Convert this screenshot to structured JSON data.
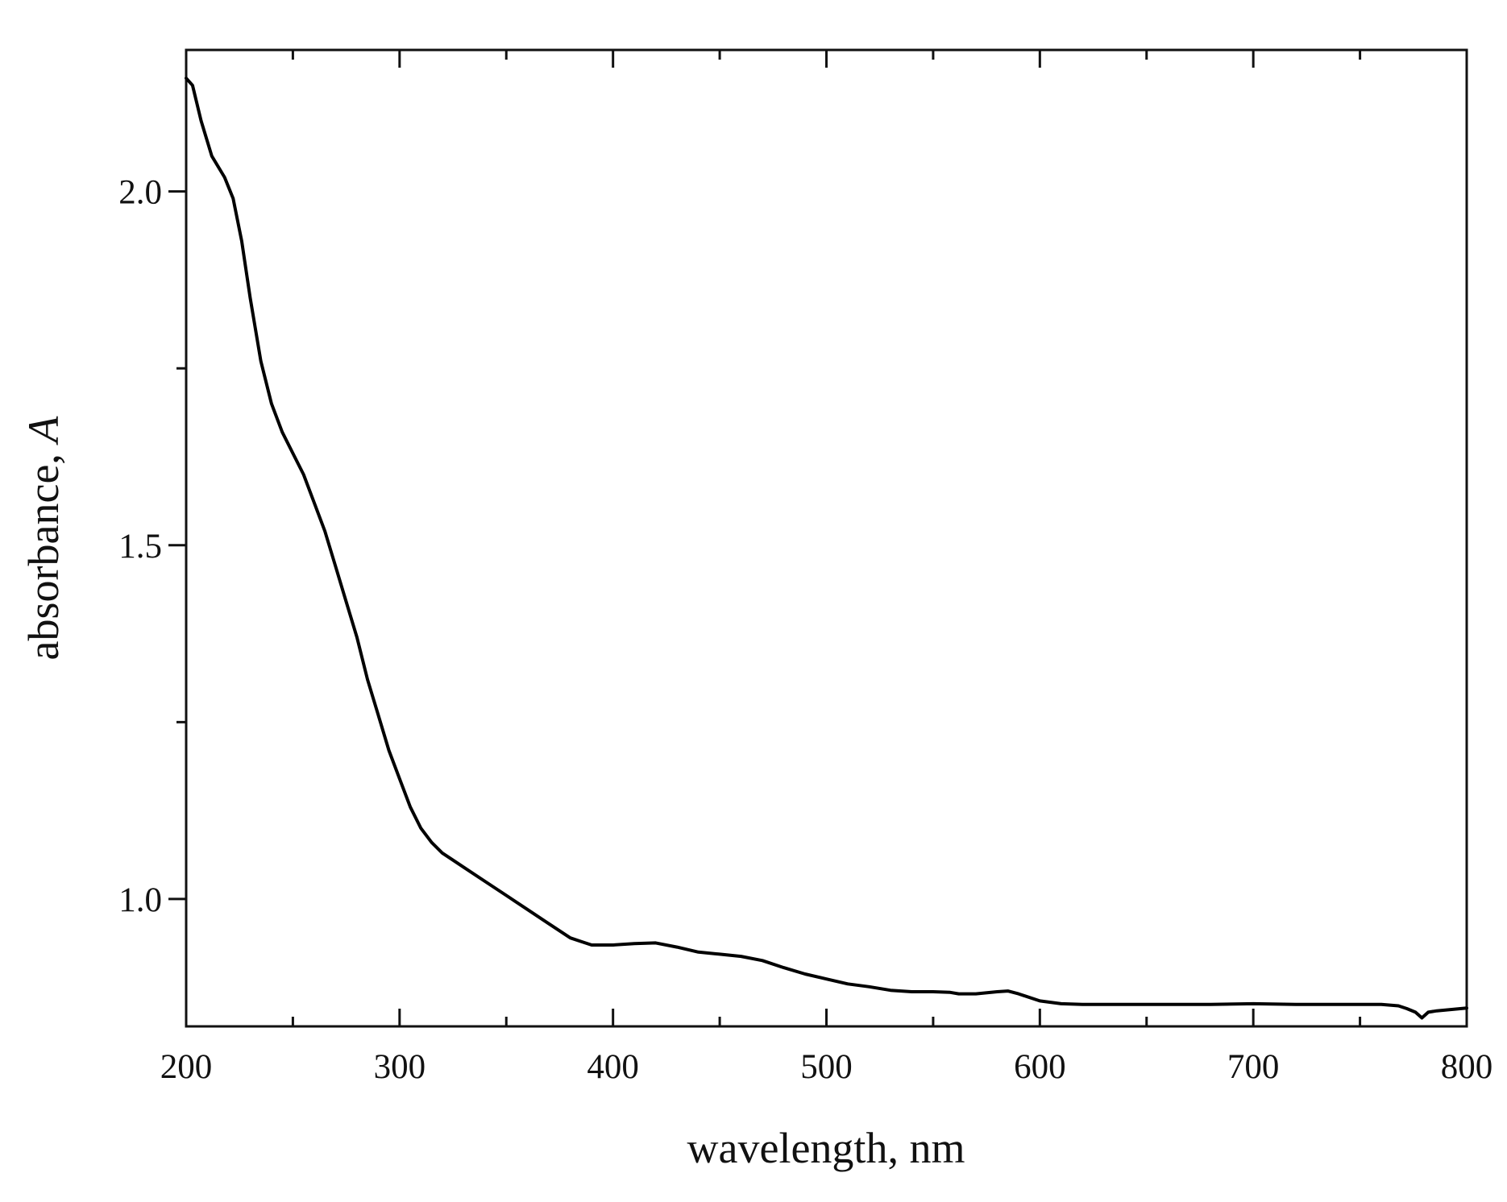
{
  "chart_data": {
    "type": "line",
    "xlabel": "wavelength, nm",
    "ylabel_text": "absorbance, ",
    "ylabel_symbol": "A",
    "xlim": [
      200,
      800
    ],
    "ylim": [
      0.82,
      2.2
    ],
    "x_major_ticks": [
      200,
      300,
      400,
      500,
      600,
      700,
      800
    ],
    "x_minor_ticks": [
      250,
      350,
      450,
      550,
      650,
      750
    ],
    "y_major_ticks": [
      1.0,
      1.5,
      2.0
    ],
    "y_minor_ticks": [
      1.25,
      1.75
    ],
    "x_tick_labels": [
      "200",
      "300",
      "400",
      "500",
      "600",
      "700",
      "800"
    ],
    "y_tick_labels": [
      "1.0",
      "1.5",
      "2.0"
    ],
    "grid": false,
    "legend": "none",
    "series": [
      {
        "color": "#000000",
        "x": [
          200,
          203,
          207,
          212,
          218,
          222,
          226,
          230,
          235,
          240,
          245,
          250,
          255,
          260,
          265,
          270,
          275,
          280,
          285,
          290,
          295,
          300,
          305,
          310,
          315,
          320,
          325,
          330,
          340,
          350,
          360,
          370,
          380,
          385,
          390,
          400,
          410,
          420,
          430,
          440,
          450,
          460,
          470,
          480,
          490,
          500,
          510,
          520,
          530,
          540,
          550,
          558,
          562,
          570,
          580,
          585,
          590,
          600,
          610,
          620,
          640,
          660,
          680,
          700,
          720,
          740,
          760,
          768,
          772,
          776,
          779,
          782,
          786,
          790,
          800
        ],
        "y": [
          2.16,
          2.15,
          2.1,
          2.05,
          2.02,
          1.99,
          1.93,
          1.85,
          1.76,
          1.7,
          1.66,
          1.63,
          1.6,
          1.56,
          1.52,
          1.47,
          1.42,
          1.37,
          1.31,
          1.26,
          1.21,
          1.17,
          1.13,
          1.1,
          1.08,
          1.065,
          1.055,
          1.045,
          1.025,
          1.005,
          0.985,
          0.965,
          0.945,
          0.94,
          0.935,
          0.935,
          0.937,
          0.938,
          0.932,
          0.925,
          0.922,
          0.919,
          0.913,
          0.903,
          0.894,
          0.887,
          0.88,
          0.876,
          0.871,
          0.869,
          0.869,
          0.868,
          0.866,
          0.866,
          0.869,
          0.87,
          0.866,
          0.856,
          0.852,
          0.851,
          0.851,
          0.851,
          0.851,
          0.852,
          0.851,
          0.851,
          0.851,
          0.849,
          0.845,
          0.84,
          0.832,
          0.84,
          0.842,
          0.843,
          0.846
        ]
      }
    ]
  }
}
